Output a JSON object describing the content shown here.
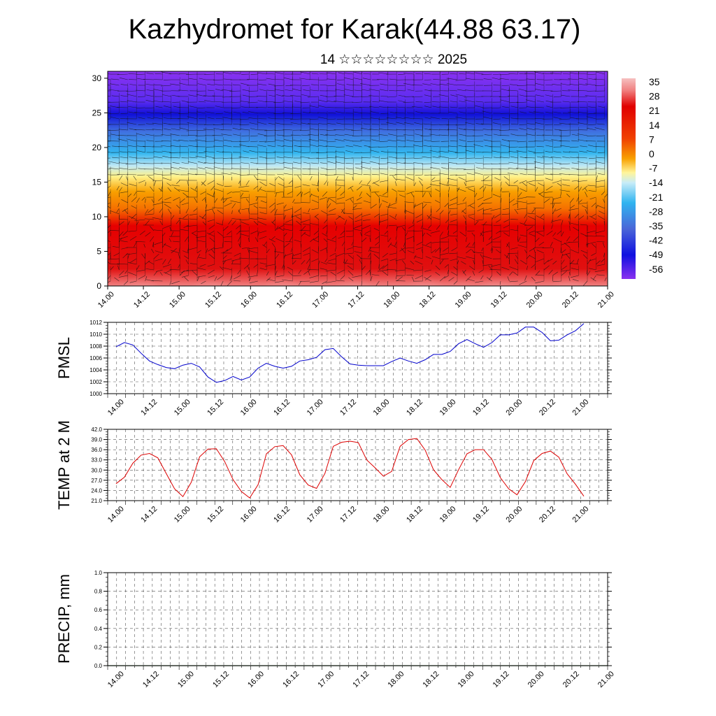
{
  "title": "Kazhydromet for Karak(44.88 63.17)",
  "subtitle": "14 ☆☆☆☆☆☆☆☆ 2025",
  "time_labels": [
    "14.00",
    "14.12",
    "15.00",
    "15.12",
    "16.00",
    "16.12",
    "17.00",
    "17.12",
    "18.00",
    "18.12",
    "19.00",
    "19.12",
    "20.00",
    "20.12",
    "21.00"
  ],
  "chart_data": [
    {
      "type": "heatmap",
      "name": "upper-air temperature and wind cross-section",
      "y_ticks": [
        0,
        5,
        10,
        15,
        20,
        25,
        30
      ],
      "ylim": [
        0,
        31
      ],
      "colorbar": {
        "labels": [
          "35",
          "28",
          "21",
          "14",
          "7",
          "0",
          "-7",
          "-14",
          "-21",
          "-28",
          "-35",
          "-42",
          "-49",
          "-56"
        ],
        "colors": {
          "hot": "#f4b8b8",
          "warm": "#e00000",
          "orange": "#f58a00",
          "yellow": "#fff59a",
          "cyan": "#2fb5f0",
          "blue": "#1010e0",
          "violet": "#8a30f0"
        }
      },
      "grid": false
    },
    {
      "type": "line",
      "ylabel": "PMSL",
      "ylim": [
        1000,
        1012
      ],
      "y_ticks": [
        "1000",
        "1002",
        "1004",
        "1006",
        "1008",
        "1010",
        "1012"
      ],
      "color": "#0000cc",
      "values": [
        1007.9,
        1008.6,
        1008.2,
        1006.8,
        1005.5,
        1004.9,
        1004.4,
        1004.2,
        1004.8,
        1005.1,
        1004.5,
        1002.8,
        1001.9,
        1002.2,
        1002.9,
        1002.3,
        1002.8,
        1004.3,
        1005.1,
        1004.6,
        1004.3,
        1004.6,
        1005.5,
        1005.7,
        1006.1,
        1007.4,
        1007.6,
        1006.2,
        1005.0,
        1004.8,
        1004.7,
        1004.7,
        1004.7,
        1005.4,
        1006.0,
        1005.5,
        1005.1,
        1005.7,
        1006.6,
        1006.6,
        1007.1,
        1008.4,
        1009.1,
        1008.4,
        1007.8,
        1008.6,
        1009.9,
        1009.9,
        1010.2,
        1011.2,
        1011.2,
        1010.3,
        1008.9,
        1009.0,
        1009.9,
        1010.6,
        1011.8
      ]
    },
    {
      "type": "line",
      "ylabel": "TEMP at 2 M",
      "ylim": [
        21,
        42
      ],
      "y_ticks": [
        "21.0",
        "24.0",
        "27.0",
        "30.0",
        "33.0",
        "36.0",
        "39.0",
        "42.0"
      ],
      "color": "#dd0000",
      "values": [
        26.0,
        27.9,
        32.0,
        34.4,
        34.9,
        33.6,
        29.0,
        24.5,
        22.2,
        26.4,
        33.9,
        36.2,
        36.3,
        32.5,
        27.2,
        23.7,
        21.8,
        25.7,
        34.8,
        36.9,
        37.2,
        34.5,
        28.6,
        25.6,
        24.6,
        29.0,
        37.0,
        38.2,
        38.5,
        38.1,
        33.0,
        30.7,
        28.2,
        29.6,
        37.0,
        39.0,
        39.3,
        35.9,
        30.1,
        27.2,
        24.9,
        30.1,
        34.8,
        36.0,
        36.0,
        33.1,
        27.8,
        24.5,
        22.7,
        26.6,
        32.8,
        34.9,
        35.6,
        33.8,
        28.9,
        25.8,
        22.3
      ]
    },
    {
      "type": "line",
      "ylabel": "PRECIP, mm",
      "ylim": [
        0,
        1
      ],
      "y_ticks": [
        "0.0",
        "0.2",
        "0.4",
        "0.6",
        "0.8",
        "1.0"
      ],
      "color": "#225522",
      "values": [
        0,
        0,
        0,
        0,
        0,
        0,
        0,
        0,
        0,
        0,
        0,
        0,
        0,
        0,
        0
      ]
    }
  ]
}
